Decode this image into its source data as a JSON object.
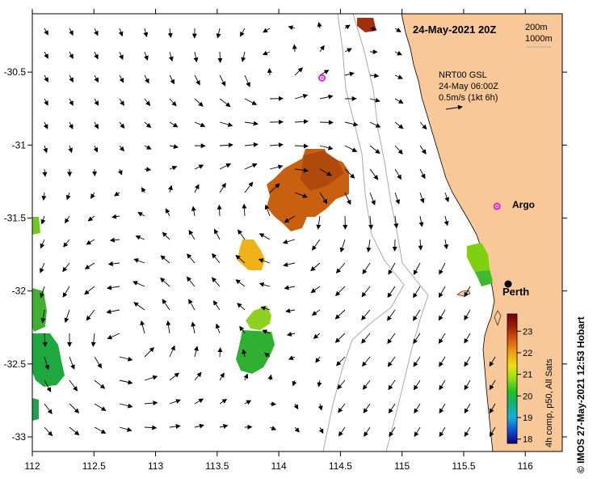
{
  "map": {
    "title": "24-May-2021 20Z",
    "depth_legend": [
      "200m",
      "1000m"
    ],
    "product": {
      "line1": "NRT00 GSL",
      "line2": "24-May 06:00Z",
      "line3": "0.5m/s (1kt 6h)"
    },
    "x_ticks": [
      "112",
      "112.5",
      "113",
      "113.5",
      "114",
      "114.5",
      "115",
      "115.5",
      "116"
    ],
    "y_ticks": [
      "-30.5",
      "-31",
      "-31.5",
      "-32",
      "-32.5",
      "-33"
    ],
    "x_tick_values": [
      112,
      112.5,
      113,
      113.5,
      114,
      114.5,
      115,
      115.5,
      116
    ],
    "y_tick_values": [
      -30.5,
      -31,
      -31.5,
      -32,
      -32.5,
      -33
    ],
    "lon_range": [
      112,
      116.3
    ],
    "lat_range": [
      -33.1,
      -30.1
    ],
    "places": [
      {
        "name": "Argo",
        "lon": 115.77,
        "lat": -31.42,
        "marker": "magenta-star"
      },
      {
        "name": "Perth",
        "lon": 115.86,
        "lat": -31.95,
        "marker": "black-dot"
      }
    ],
    "unlabeled_argo": {
      "lon": 114.35,
      "lat": -30.54
    },
    "colorbar": {
      "title": "4h comp, p50, All Sats",
      "ticks": [
        "23",
        "22",
        "21",
        "20",
        "19",
        "18"
      ],
      "range": [
        17.8,
        23.8
      ],
      "colors": [
        "#08087a",
        "#1050d8",
        "#10b0e0",
        "#10b080",
        "#20c020",
        "#90e010",
        "#f0e010",
        "#f0a010",
        "#d85a10",
        "#a02008",
        "#700000"
      ]
    },
    "credit": "© IMOS 27-May-2021 12:53 Hobart",
    "colors": {
      "land": "#f8c898",
      "isobath": "#a8a8a8",
      "star": "#e020e0"
    }
  }
}
